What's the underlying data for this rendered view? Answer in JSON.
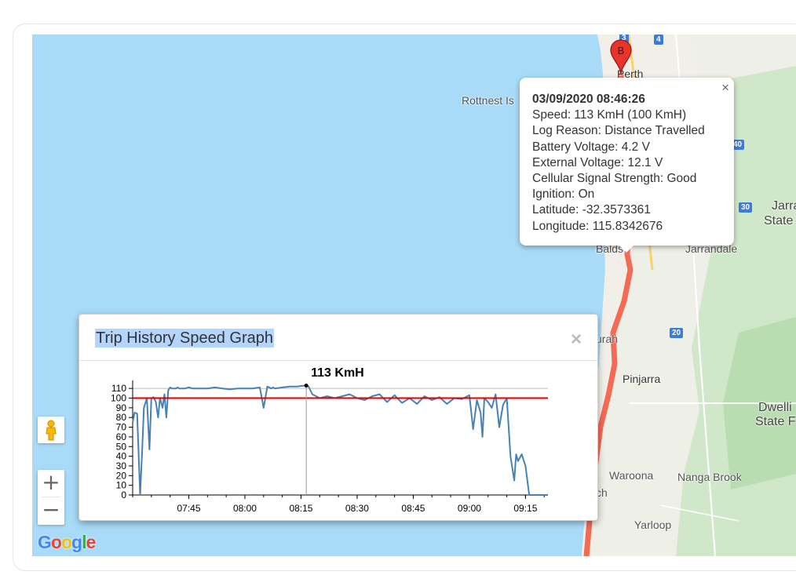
{
  "map": {
    "places": [
      "Rottnest Is",
      "Perth",
      "Jarrandale",
      "Pinjarra",
      "Waroona",
      "Nanga Brook",
      "Yarloop",
      "Dwelli",
      "State F",
      "Jarra",
      "State",
      "Balds",
      "urah",
      "ch"
    ],
    "shields": [
      "3",
      "4",
      "40",
      "30",
      "20"
    ],
    "marker_label": "B",
    "colors": {
      "water": "#a9dbf9",
      "route": "#f56a55",
      "land": "#eef0e8",
      "urban": "#f2efe9"
    }
  },
  "infowindow": {
    "datetime": "03/09/2020 08:46:26",
    "speed": "Speed: 113 KmH (100 KmH)",
    "log_reason": "Log Reason: Distance Travelled",
    "battery": "Battery Voltage: 4.2 V",
    "external": "External Voltage: 12.1 V",
    "signal": "Cellular Signal Strength: Good",
    "ignition": "Ignition: On",
    "latitude": "Latitude: -32.3573361",
    "longitude": "Longitude: 115.8342676",
    "close": "×"
  },
  "controls": {
    "zoom_in": "+",
    "zoom_out": "−",
    "google_letters": [
      "G",
      "o",
      "o",
      "g",
      "l",
      "e"
    ]
  },
  "dialog": {
    "title": "Trip History Speed Graph",
    "close": "×"
  },
  "chart_data": {
    "type": "line",
    "title": "",
    "hover_label": "113 KmH",
    "hover_x": 46.4,
    "speed_limit": 100,
    "ylim": [
      0,
      115
    ],
    "yticks": [
      0,
      10,
      20,
      30,
      40,
      50,
      60,
      70,
      80,
      90,
      100,
      110
    ],
    "xlim": [
      0,
      111
    ],
    "xticks": [
      {
        "v": 15,
        "label": "07:45"
      },
      {
        "v": 30,
        "label": "08:00"
      },
      {
        "v": 45,
        "label": "08:15"
      },
      {
        "v": 60,
        "label": "08:30"
      },
      {
        "v": 75,
        "label": "08:45"
      },
      {
        "v": 90,
        "label": "09:00"
      },
      {
        "v": 105,
        "label": "09:15"
      }
    ],
    "x_minutes_from_0730": [
      0,
      0.5,
      1.2,
      2,
      2.5,
      3,
      3.8,
      4.5,
      5,
      5.6,
      6.2,
      6.8,
      7.3,
      8,
      8.5,
      9,
      9.5,
      10,
      10.5,
      11,
      11.6,
      12,
      12.5,
      13,
      14,
      15,
      16,
      18,
      20,
      22,
      24,
      26,
      28,
      30,
      32,
      34,
      35,
      36,
      36.5,
      37,
      37.5,
      38,
      40,
      42,
      44,
      46,
      46.4,
      47,
      48,
      50,
      52,
      54,
      56,
      58,
      60,
      62,
      64,
      66,
      68,
      70,
      72,
      74,
      76,
      78,
      80,
      82,
      84,
      86,
      88,
      90,
      91,
      92,
      93,
      93.5,
      94,
      95,
      96,
      97,
      98,
      99,
      100,
      101,
      102,
      102.5,
      103,
      104,
      105,
      106,
      107,
      108,
      109,
      110,
      111
    ],
    "speed_kmh": [
      75,
      85,
      84,
      0,
      42,
      90,
      100,
      47,
      100,
      101,
      96,
      80,
      100,
      90,
      104,
      80,
      108,
      111,
      110,
      110,
      110,
      111,
      110,
      110,
      110,
      111,
      110,
      110,
      110,
      111,
      110,
      109,
      110,
      110,
      110,
      111,
      90,
      112,
      111,
      110,
      111,
      110,
      111,
      112,
      112,
      113,
      113,
      112,
      104,
      100,
      102,
      100,
      102,
      104,
      100,
      98,
      102,
      104,
      96,
      103,
      95,
      100,
      94,
      102,
      98,
      101,
      94,
      100,
      99,
      103,
      68,
      98,
      85,
      60,
      100,
      96,
      90,
      104,
      70,
      93,
      100,
      40,
      15,
      42,
      35,
      42,
      30,
      0,
      0,
      0,
      0,
      0,
      0
    ]
  }
}
